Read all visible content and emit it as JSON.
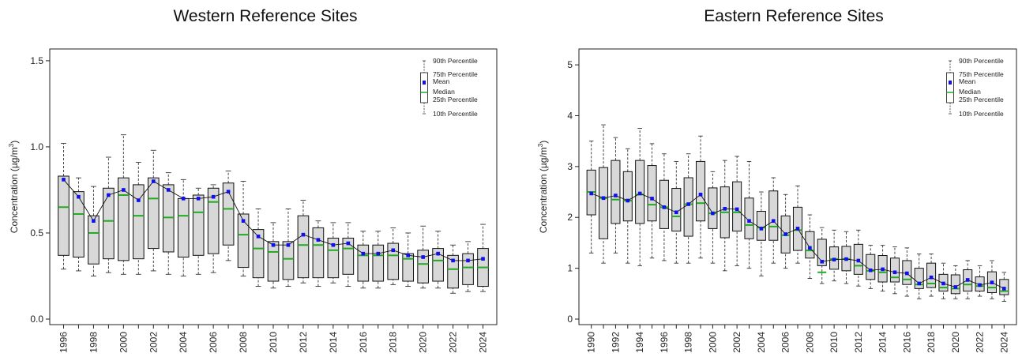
{
  "chart_data": [
    {
      "type": "boxplot",
      "title": "Western Reference Sites",
      "ylabel": "Concentration (µg/m³)",
      "ylabel_text": "Concentration (µg/m",
      "ylabel_sup": "3",
      "ylabel_end": ")",
      "ylim": [
        0,
        1.55
      ],
      "yticks": [
        "0.0",
        "0.5",
        "1.0",
        "1.5"
      ],
      "ytick_values": [
        0,
        0.5,
        1.0,
        1.5
      ],
      "xtick_labels": [
        "1996",
        "1998",
        "2000",
        "2002",
        "2004",
        "2006",
        "2008",
        "2010",
        "2012",
        "2014",
        "2016",
        "2018",
        "2020",
        "2022",
        "2024"
      ],
      "years": [
        1996,
        1997,
        1998,
        1999,
        2000,
        2001,
        2002,
        2003,
        2004,
        2005,
        2006,
        2007,
        2008,
        2009,
        2010,
        2011,
        2012,
        2013,
        2014,
        2015,
        2016,
        2017,
        2018,
        2019,
        2020,
        2021,
        2022,
        2023,
        2024
      ],
      "p10": [
        0.29,
        0.28,
        0.25,
        0.27,
        0.26,
        0.26,
        0.28,
        0.26,
        0.25,
        0.26,
        0.27,
        0.34,
        0.25,
        0.19,
        0.18,
        0.19,
        0.21,
        0.19,
        0.21,
        0.19,
        0.18,
        0.18,
        0.2,
        0.19,
        0.18,
        0.18,
        0.15,
        0.16,
        0.16
      ],
      "p25": [
        0.37,
        0.36,
        0.32,
        0.35,
        0.34,
        0.35,
        0.41,
        0.39,
        0.36,
        0.37,
        0.38,
        0.43,
        0.3,
        0.24,
        0.22,
        0.23,
        0.24,
        0.24,
        0.24,
        0.26,
        0.22,
        0.22,
        0.23,
        0.22,
        0.21,
        0.22,
        0.18,
        0.2,
        0.19
      ],
      "median": [
        0.65,
        0.61,
        0.5,
        0.57,
        0.72,
        0.6,
        0.7,
        0.59,
        0.6,
        0.62,
        0.68,
        0.64,
        0.49,
        0.41,
        0.39,
        0.35,
        0.43,
        0.43,
        0.4,
        0.41,
        0.37,
        0.37,
        0.37,
        0.35,
        0.32,
        0.34,
        0.29,
        0.3,
        0.3
      ],
      "p75": [
        0.83,
        0.74,
        0.6,
        0.76,
        0.82,
        0.78,
        0.82,
        0.78,
        0.7,
        0.72,
        0.76,
        0.79,
        0.61,
        0.52,
        0.45,
        0.45,
        0.6,
        0.53,
        0.47,
        0.47,
        0.43,
        0.43,
        0.44,
        0.38,
        0.4,
        0.41,
        0.37,
        0.38,
        0.41
      ],
      "p90": [
        1.02,
        0.82,
        0.77,
        0.94,
        1.07,
        0.91,
        0.98,
        0.85,
        0.81,
        0.76,
        0.78,
        0.86,
        0.8,
        0.64,
        0.56,
        0.64,
        0.69,
        0.57,
        0.56,
        0.56,
        0.51,
        0.51,
        0.53,
        0.5,
        0.54,
        0.51,
        0.43,
        0.45,
        0.55
      ],
      "mean": [
        0.81,
        0.71,
        0.57,
        0.72,
        0.75,
        0.69,
        0.8,
        0.75,
        0.7,
        0.7,
        0.71,
        0.74,
        0.57,
        0.48,
        0.43,
        0.43,
        0.49,
        0.46,
        0.43,
        0.44,
        0.38,
        0.38,
        0.4,
        0.37,
        0.36,
        0.38,
        0.34,
        0.34,
        0.35
      ],
      "colors": {
        "box": "#d8d8d8",
        "median": "#22aa22",
        "mean": "#1010ee",
        "line": "#111111"
      },
      "legend": {
        "position": "top-right",
        "labels": [
          "90th Percentile",
          "75th Percentile",
          "Mean",
          "Median",
          "25th Percentile",
          "10th Percentile"
        ]
      }
    },
    {
      "type": "boxplot",
      "title": "Eastern Reference Sites",
      "ylabel": "Concentration (µg/m³)",
      "ylabel_text": "Concentration (µg/m",
      "ylabel_sup": "3",
      "ylabel_end": ")",
      "ylim": [
        0,
        5.25
      ],
      "yticks": [
        "0",
        "1",
        "2",
        "3",
        "4",
        "5"
      ],
      "ytick_values": [
        0,
        1,
        2,
        3,
        4,
        5
      ],
      "xtick_labels": [
        "1990",
        "1992",
        "1994",
        "1996",
        "1998",
        "2000",
        "2002",
        "2004",
        "2006",
        "2008",
        "2010",
        "2012",
        "2014",
        "2016",
        "2018",
        "2020",
        "2022",
        "2024"
      ],
      "years": [
        1990,
        1991,
        1992,
        1993,
        1994,
        1995,
        1996,
        1997,
        1998,
        1999,
        2000,
        2001,
        2002,
        2003,
        2004,
        2005,
        2006,
        2007,
        2008,
        2009,
        2010,
        2011,
        2012,
        2013,
        2014,
        2015,
        2016,
        2017,
        2018,
        2019,
        2020,
        2021,
        2022,
        2023,
        2024
      ],
      "p10": [
        1.3,
        1.1,
        1.3,
        1.1,
        1.05,
        1.2,
        1.15,
        1.1,
        1.1,
        1.2,
        1.1,
        0.95,
        1.05,
        1.0,
        0.85,
        1.1,
        1.0,
        1.1,
        0.8,
        0.7,
        0.75,
        0.7,
        0.65,
        0.6,
        0.55,
        0.5,
        0.45,
        0.4,
        0.45,
        0.4,
        0.4,
        0.4,
        0.45,
        0.4,
        0.35
      ],
      "p25": [
        2.05,
        1.58,
        1.88,
        1.93,
        1.88,
        1.93,
        1.78,
        1.73,
        1.63,
        1.93,
        1.78,
        1.6,
        1.73,
        1.58,
        1.55,
        1.55,
        1.3,
        1.35,
        1.2,
        1.05,
        0.98,
        0.95,
        0.88,
        0.78,
        0.73,
        0.73,
        0.68,
        0.6,
        0.62,
        0.55,
        0.5,
        0.55,
        0.55,
        0.52,
        0.48
      ],
      "median": [
        2.5,
        2.38,
        2.35,
        2.33,
        2.45,
        2.25,
        2.2,
        2.02,
        2.26,
        2.28,
        2.08,
        2.1,
        2.1,
        1.85,
        1.8,
        1.82,
        1.65,
        1.75,
        1.35,
        0.92,
        1.18,
        1.18,
        1.05,
        0.95,
        0.92,
        0.82,
        0.78,
        0.68,
        0.7,
        0.62,
        0.6,
        0.68,
        0.65,
        0.62,
        0.55
      ],
      "p75": [
        2.93,
        2.98,
        3.12,
        2.9,
        3.12,
        3.02,
        2.73,
        2.57,
        2.78,
        3.1,
        2.58,
        2.6,
        2.7,
        2.38,
        2.12,
        2.52,
        2.03,
        2.2,
        1.72,
        1.57,
        1.42,
        1.43,
        1.47,
        1.27,
        1.25,
        1.2,
        1.15,
        1.0,
        1.1,
        0.88,
        0.87,
        0.97,
        0.83,
        0.93,
        0.78
      ],
      "p90": [
        3.5,
        3.82,
        3.57,
        3.35,
        3.75,
        3.45,
        3.25,
        3.1,
        3.25,
        3.6,
        2.9,
        3.12,
        3.2,
        3.1,
        2.5,
        2.78,
        2.45,
        2.62,
        2.05,
        1.8,
        1.75,
        1.72,
        1.75,
        1.45,
        1.45,
        1.42,
        1.4,
        1.28,
        1.28,
        1.1,
        1.05,
        1.15,
        1.05,
        1.15,
        0.92
      ],
      "mean": [
        2.47,
        2.38,
        2.43,
        2.33,
        2.47,
        2.37,
        2.2,
        2.1,
        2.26,
        2.45,
        2.08,
        2.17,
        2.16,
        1.93,
        1.78,
        1.93,
        1.67,
        1.78,
        1.4,
        1.13,
        1.17,
        1.18,
        1.15,
        0.96,
        0.98,
        0.92,
        0.9,
        0.7,
        0.82,
        0.7,
        0.63,
        0.77,
        0.67,
        0.72,
        0.6
      ],
      "colors": {
        "box": "#d8d8d8",
        "median": "#22aa22",
        "mean": "#1010ee",
        "line": "#111111"
      },
      "legend": {
        "position": "top-right",
        "labels": [
          "90th Percentile",
          "75th Percentile",
          "Mean",
          "Median",
          "25th Percentile",
          "10th Percentile"
        ]
      }
    }
  ]
}
